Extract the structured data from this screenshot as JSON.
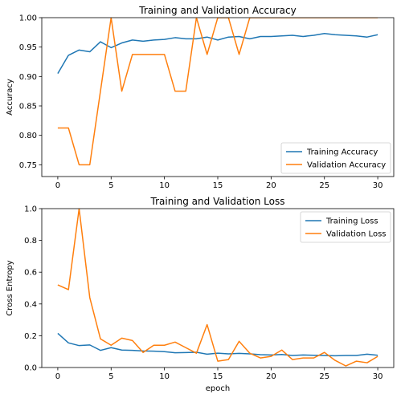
{
  "chart_data": [
    {
      "type": "line",
      "title": "Training and Validation Accuracy",
      "xlabel": "",
      "ylabel": "Accuracy",
      "xlim": [
        -1.5,
        31.5
      ],
      "ylim": [
        0.73,
        1.0
      ],
      "xticks": [
        0,
        5,
        10,
        15,
        20,
        25,
        30
      ],
      "yticks": [
        0.75,
        0.8,
        0.85,
        0.9,
        0.95,
        1.0
      ],
      "ytick_labels": [
        "0.75",
        "0.80",
        "0.85",
        "0.90",
        "0.95",
        "1.00"
      ],
      "legend": "bottom-right",
      "grid": false,
      "x": [
        0,
        1,
        2,
        3,
        4,
        5,
        6,
        7,
        8,
        9,
        10,
        11,
        12,
        13,
        14,
        15,
        16,
        17,
        18,
        19,
        20,
        21,
        22,
        23,
        24,
        25,
        26,
        27,
        28,
        29,
        30
      ],
      "series": [
        {
          "name": "Training Accuracy",
          "color": "#1f77b4",
          "values": [
            0.905,
            0.936,
            0.945,
            0.942,
            0.959,
            0.949,
            0.957,
            0.962,
            0.96,
            0.962,
            0.963,
            0.966,
            0.964,
            0.964,
            0.967,
            0.962,
            0.967,
            0.968,
            0.964,
            0.968,
            0.968,
            0.969,
            0.97,
            0.968,
            0.97,
            0.973,
            0.971,
            0.97,
            0.969,
            0.967,
            0.971
          ]
        },
        {
          "name": "Validation Accuracy",
          "color": "#ff7f0e",
          "values": [
            0.8125,
            0.8125,
            0.75,
            0.75,
            0.875,
            1.0,
            0.875,
            0.9375,
            0.9375,
            0.9375,
            0.9375,
            0.875,
            0.875,
            1.0,
            0.9375,
            1.0,
            1.0,
            0.9375,
            1.0,
            1.0,
            1.0,
            1.0,
            1.0,
            1.0,
            1.0,
            1.0,
            1.0,
            1.0,
            1.0,
            1.0,
            1.0
          ]
        }
      ]
    },
    {
      "type": "line",
      "title": "Training and Validation Loss",
      "xlabel": "epoch",
      "ylabel": "Cross Entropy",
      "xlim": [
        -1.5,
        31.5
      ],
      "ylim": [
        0.0,
        1.0
      ],
      "xticks": [
        0,
        5,
        10,
        15,
        20,
        25,
        30
      ],
      "yticks": [
        0.0,
        0.2,
        0.4,
        0.6,
        0.8,
        1.0
      ],
      "ytick_labels": [
        "0.0",
        "0.2",
        "0.4",
        "0.6",
        "0.8",
        "1.0"
      ],
      "legend": "top-right",
      "grid": false,
      "x": [
        0,
        1,
        2,
        3,
        4,
        5,
        6,
        7,
        8,
        9,
        10,
        11,
        12,
        13,
        14,
        15,
        16,
        17,
        18,
        19,
        20,
        21,
        22,
        23,
        24,
        25,
        26,
        27,
        28,
        29,
        30
      ],
      "series": [
        {
          "name": "Training Loss",
          "color": "#1f77b4",
          "values": [
            0.215,
            0.155,
            0.138,
            0.142,
            0.108,
            0.125,
            0.11,
            0.108,
            0.104,
            0.103,
            0.1,
            0.093,
            0.094,
            0.096,
            0.084,
            0.09,
            0.086,
            0.089,
            0.086,
            0.081,
            0.079,
            0.082,
            0.076,
            0.079,
            0.077,
            0.076,
            0.074,
            0.076,
            0.076,
            0.084,
            0.077
          ]
        },
        {
          "name": "Validation Loss",
          "color": "#ff7f0e",
          "values": [
            0.52,
            0.49,
            1.0,
            0.44,
            0.18,
            0.14,
            0.185,
            0.17,
            0.095,
            0.14,
            0.14,
            0.16,
            0.125,
            0.09,
            0.27,
            0.04,
            0.05,
            0.165,
            0.09,
            0.06,
            0.07,
            0.11,
            0.05,
            0.06,
            0.06,
            0.095,
            0.045,
            0.01,
            0.04,
            0.03,
            0.07
          ]
        }
      ]
    }
  ]
}
